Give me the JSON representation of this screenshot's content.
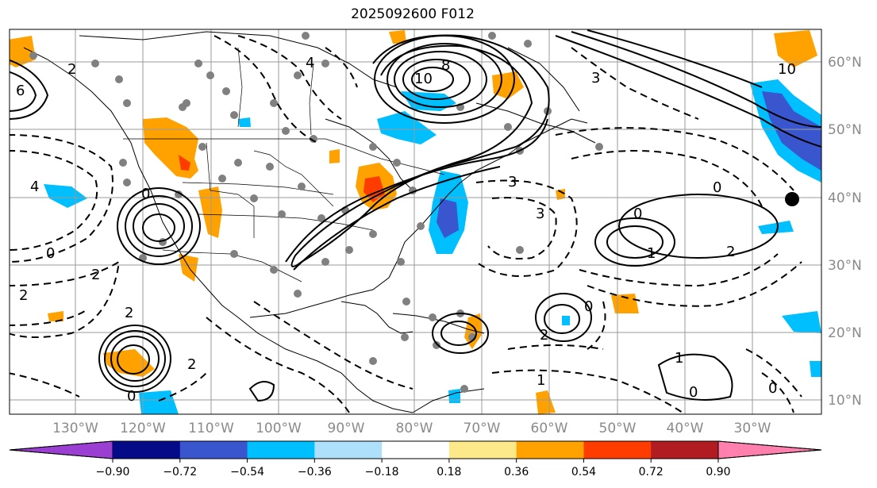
{
  "title": "2025092600 F012",
  "map": {
    "longitude_labels": [
      "130°W",
      "120°W",
      "110°W",
      "100°W",
      "90°W",
      "80°W",
      "70°W",
      "60°W",
      "50°W",
      "40°W",
      "30°W"
    ],
    "latitude_labels": [
      "60°N",
      "50°N",
      "40°N",
      "30°N",
      "20°N",
      "10°N"
    ],
    "contour_labels": [
      "8",
      "10",
      "10",
      "3",
      "2",
      "4",
      "0",
      "6",
      "2",
      "0",
      "2",
      "2",
      "2",
      "0",
      "0",
      "1",
      "1",
      "0",
      "0",
      "2",
      "0",
      "2",
      "1",
      "4",
      "3",
      "0",
      "3"
    ]
  },
  "colorbar": {
    "tick_labels": [
      "−0.90",
      "−0.72",
      "−0.54",
      "−0.36",
      "−0.18",
      "0.18",
      "0.36",
      "0.54",
      "0.72",
      "0.90"
    ],
    "colors": [
      "#9a3fd2",
      "#050a88",
      "#3a56cf",
      "#00bfff",
      "#aee0fb",
      "#ffffff",
      "#fde88a",
      "#ffa200",
      "#ff3c00",
      "#b11c22",
      "#ff80ad"
    ]
  }
}
